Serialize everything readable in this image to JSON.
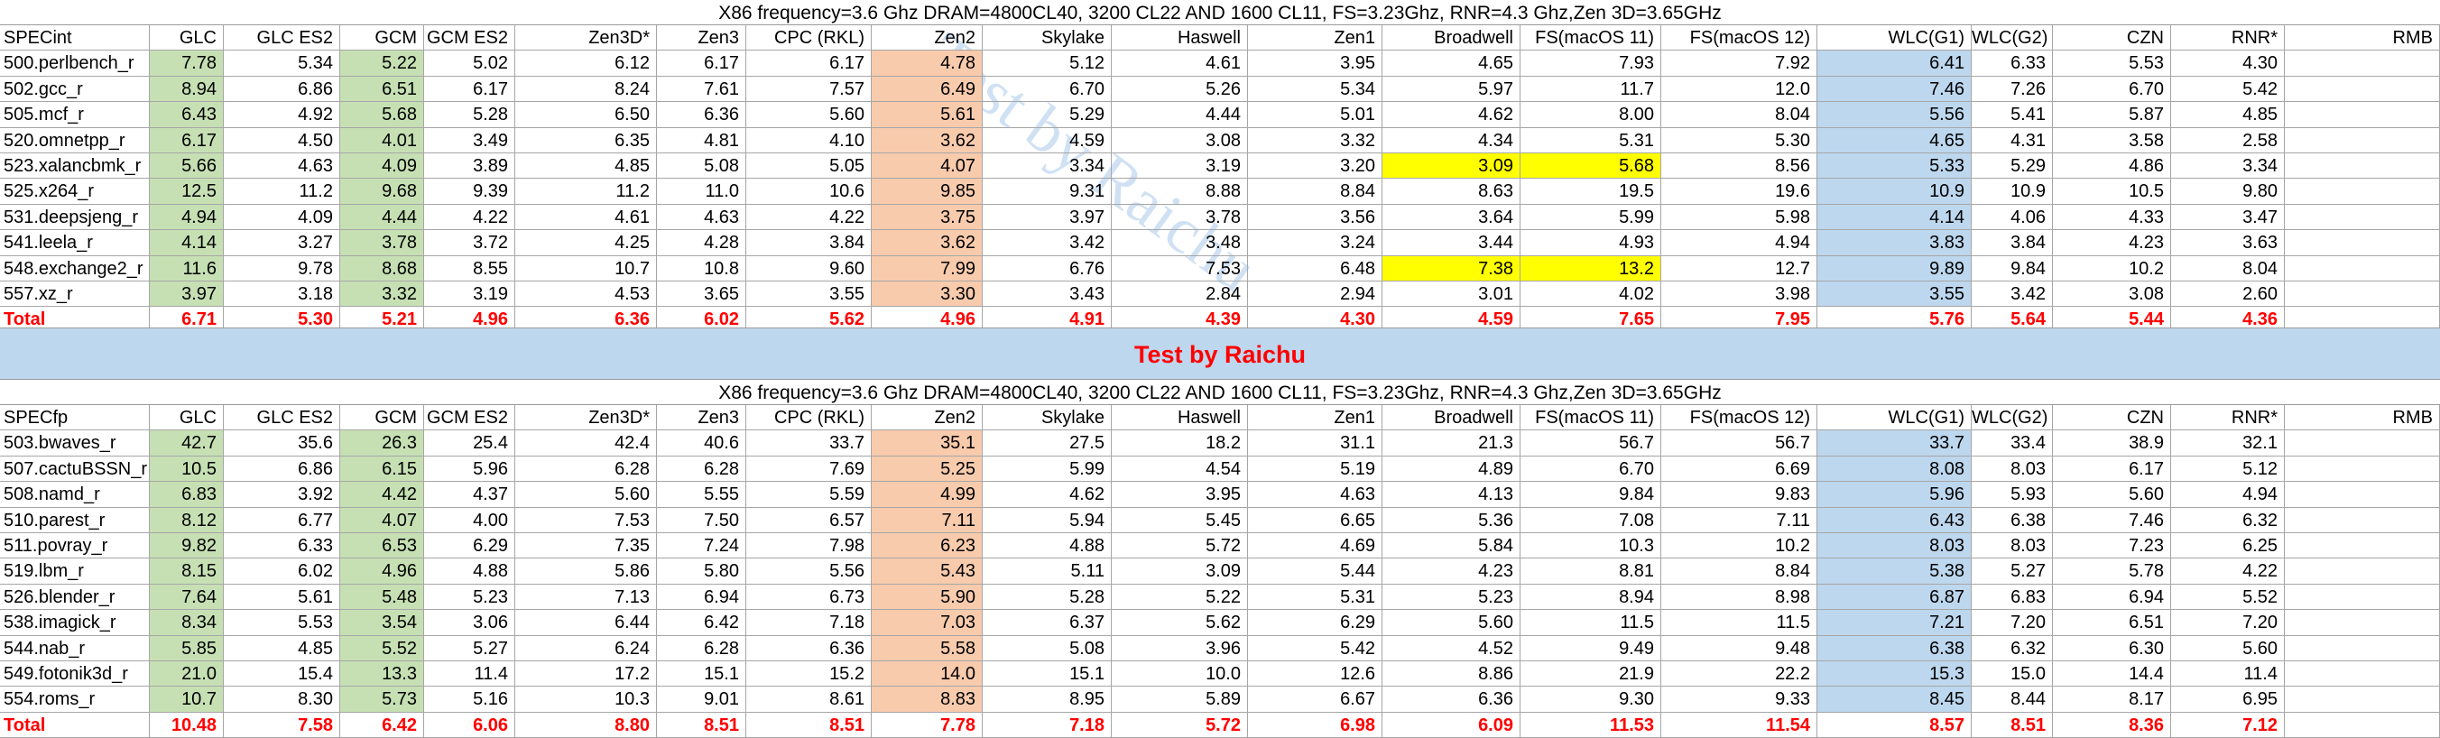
{
  "header": {
    "title": "X86 frequency=3.6 Ghz DRAM=4800CL40, 3200 CL22 AND 1600 CL11, FS=3.23Ghz, RNR=4.3 Ghz,Zen 3D=3.65GHz"
  },
  "watermark": "Test by Raichu",
  "columns": [
    "GLC",
    "GLC ES2",
    "GCM",
    "GCM ES2",
    "Zen3D*",
    "Zen3",
    "CPC (RKL)",
    "Zen2",
    "Skylake",
    "Haswell",
    "Zen1",
    "Broadwell",
    "FS(macOS 11)",
    "FS(macOS 12)",
    "WLC(G1)",
    "WLC(G2)",
    "CZN",
    "RNR*",
    "RMB"
  ],
  "colors": {
    "green": "#c6e0b4",
    "orange": "#f8cbad",
    "blue": "#bdd7ee",
    "yellow": "#ffff00",
    "total_red": "#ff0000"
  },
  "int": {
    "title": "X86 frequency=3.6 Ghz DRAM=4800CL40, 3200 CL22 AND 1600 CL11, FS=3.23Ghz, RNR=4.3 Ghz,Zen 3D=3.65GHz",
    "label": "SPECint",
    "rows": [
      {
        "name": "500.perlbench_r",
        "v": [
          "7.78",
          "5.34",
          "5.22",
          "5.02",
          "6.12",
          "6.17",
          "6.17",
          "4.78",
          "5.12",
          "4.61",
          "3.95",
          "4.65",
          "7.93",
          "7.92",
          "6.41",
          "6.33",
          "5.53",
          "4.30",
          ""
        ]
      },
      {
        "name": "502.gcc_r",
        "v": [
          "8.94",
          "6.86",
          "6.51",
          "6.17",
          "8.24",
          "7.61",
          "7.57",
          "6.49",
          "6.70",
          "5.26",
          "5.34",
          "5.97",
          "11.7",
          "12.0",
          "7.46",
          "7.26",
          "6.70",
          "5.42",
          ""
        ]
      },
      {
        "name": "505.mcf_r",
        "v": [
          "6.43",
          "4.92",
          "5.68",
          "5.28",
          "6.50",
          "6.36",
          "5.60",
          "5.61",
          "5.29",
          "4.44",
          "5.01",
          "4.62",
          "8.00",
          "8.04",
          "5.56",
          "5.41",
          "5.87",
          "4.85",
          ""
        ]
      },
      {
        "name": "520.omnetpp_r",
        "v": [
          "6.17",
          "4.50",
          "4.01",
          "3.49",
          "6.35",
          "4.81",
          "4.10",
          "3.62",
          "4.59",
          "3.08",
          "3.32",
          "4.34",
          "5.31",
          "5.30",
          "4.65",
          "4.31",
          "3.58",
          "2.58",
          ""
        ]
      },
      {
        "name": "523.xalancbmk_r",
        "v": [
          "5.66",
          "4.63",
          "4.09",
          "3.89",
          "4.85",
          "5.08",
          "5.05",
          "4.07",
          "3.34",
          "3.19",
          "3.20",
          "3.09",
          "5.68",
          "8.56",
          "5.33",
          "5.29",
          "4.86",
          "3.34",
          ""
        ]
      },
      {
        "name": "525.x264_r",
        "v": [
          "12.5",
          "11.2",
          "9.68",
          "9.39",
          "11.2",
          "11.0",
          "10.6",
          "9.85",
          "9.31",
          "8.88",
          "8.84",
          "8.63",
          "19.5",
          "19.6",
          "10.9",
          "10.9",
          "10.5",
          "9.80",
          ""
        ]
      },
      {
        "name": "531.deepsjeng_r",
        "v": [
          "4.94",
          "4.09",
          "4.44",
          "4.22",
          "4.61",
          "4.63",
          "4.22",
          "3.75",
          "3.97",
          "3.78",
          "3.56",
          "3.64",
          "5.99",
          "5.98",
          "4.14",
          "4.06",
          "4.33",
          "3.47",
          ""
        ]
      },
      {
        "name": "541.leela_r",
        "v": [
          "4.14",
          "3.27",
          "3.78",
          "3.72",
          "4.25",
          "4.28",
          "3.84",
          "3.62",
          "3.42",
          "3.48",
          "3.24",
          "3.44",
          "4.93",
          "4.94",
          "3.83",
          "3.84",
          "4.23",
          "3.63",
          ""
        ]
      },
      {
        "name": "548.exchange2_r",
        "v": [
          "11.6",
          "9.78",
          "8.68",
          "8.55",
          "10.7",
          "10.8",
          "9.60",
          "7.99",
          "6.76",
          "7.53",
          "6.48",
          "7.38",
          "13.2",
          "12.7",
          "9.89",
          "9.84",
          "10.2",
          "8.04",
          ""
        ]
      },
      {
        "name": "557.xz_r",
        "v": [
          "3.97",
          "3.18",
          "3.32",
          "3.19",
          "4.53",
          "3.65",
          "3.55",
          "3.30",
          "3.43",
          "2.84",
          "2.94",
          "3.01",
          "4.02",
          "3.98",
          "3.55",
          "3.42",
          "3.08",
          "2.60",
          ""
        ]
      }
    ],
    "total": {
      "name": "Total",
      "v": [
        "6.71",
        "5.30",
        "5.21",
        "4.96",
        "6.36",
        "6.02",
        "5.62",
        "4.96",
        "4.91",
        "4.39",
        "4.30",
        "4.59",
        "7.65",
        "7.95",
        "5.76",
        "5.64",
        "5.44",
        "4.36",
        ""
      ]
    }
  },
  "banner": "Test by Raichu",
  "fp": {
    "title": "X86 frequency=3.6 Ghz DRAM=4800CL40, 3200 CL22 AND 1600 CL11, FS=3.23Ghz, RNR=4.3 Ghz,Zen 3D=3.65GHz",
    "label": "SPECfp",
    "rows": [
      {
        "name": "503.bwaves_r",
        "v": [
          "42.7",
          "35.6",
          "26.3",
          "25.4",
          "42.4",
          "40.6",
          "33.7",
          "35.1",
          "27.5",
          "18.2",
          "31.1",
          "21.3",
          "56.7",
          "56.7",
          "33.7",
          "33.4",
          "38.9",
          "32.1",
          ""
        ]
      },
      {
        "name": "507.cactuBSSN_r",
        "v": [
          "10.5",
          "6.86",
          "6.15",
          "5.96",
          "6.28",
          "6.28",
          "7.69",
          "5.25",
          "5.99",
          "4.54",
          "5.19",
          "4.89",
          "6.70",
          "6.69",
          "8.08",
          "8.03",
          "6.17",
          "5.12",
          ""
        ]
      },
      {
        "name": "508.namd_r",
        "v": [
          "6.83",
          "3.92",
          "4.42",
          "4.37",
          "5.60",
          "5.55",
          "5.59",
          "4.99",
          "4.62",
          "3.95",
          "4.63",
          "4.13",
          "9.84",
          "9.83",
          "5.96",
          "5.93",
          "5.60",
          "4.94",
          ""
        ]
      },
      {
        "name": "510.parest_r",
        "v": [
          "8.12",
          "6.77",
          "4.07",
          "4.00",
          "7.53",
          "7.50",
          "6.57",
          "7.11",
          "5.94",
          "5.45",
          "6.65",
          "5.36",
          "7.08",
          "7.11",
          "6.43",
          "6.38",
          "7.46",
          "6.32",
          ""
        ]
      },
      {
        "name": "511.povray_r",
        "v": [
          "9.82",
          "6.33",
          "6.53",
          "6.29",
          "7.35",
          "7.24",
          "7.98",
          "6.23",
          "4.88",
          "5.72",
          "4.69",
          "5.84",
          "10.3",
          "10.2",
          "8.03",
          "8.03",
          "7.23",
          "6.25",
          ""
        ]
      },
      {
        "name": "519.lbm_r",
        "v": [
          "8.15",
          "6.02",
          "4.96",
          "4.88",
          "5.86",
          "5.80",
          "5.56",
          "5.43",
          "5.11",
          "3.09",
          "5.44",
          "4.23",
          "8.81",
          "8.84",
          "5.38",
          "5.27",
          "5.78",
          "4.22",
          ""
        ]
      },
      {
        "name": "526.blender_r",
        "v": [
          "7.64",
          "5.61",
          "5.48",
          "5.23",
          "7.13",
          "6.94",
          "6.73",
          "5.90",
          "5.28",
          "5.22",
          "5.31",
          "5.23",
          "8.94",
          "8.98",
          "6.87",
          "6.83",
          "6.94",
          "5.52",
          ""
        ]
      },
      {
        "name": "538.imagick_r",
        "v": [
          "8.34",
          "5.53",
          "3.54",
          "3.06",
          "6.44",
          "6.42",
          "7.18",
          "7.03",
          "6.37",
          "5.62",
          "6.29",
          "5.60",
          "11.5",
          "11.5",
          "7.21",
          "7.20",
          "6.51",
          "7.20",
          ""
        ]
      },
      {
        "name": "544.nab_r",
        "v": [
          "5.85",
          "4.85",
          "5.52",
          "5.27",
          "6.24",
          "6.28",
          "6.36",
          "5.58",
          "5.08",
          "3.96",
          "5.42",
          "4.52",
          "9.49",
          "9.48",
          "6.38",
          "6.32",
          "6.30",
          "5.60",
          ""
        ]
      },
      {
        "name": "549.fotonik3d_r",
        "v": [
          "21.0",
          "15.4",
          "13.3",
          "11.4",
          "17.2",
          "15.1",
          "15.2",
          "14.0",
          "15.1",
          "10.0",
          "12.6",
          "8.86",
          "21.9",
          "22.2",
          "15.3",
          "15.0",
          "14.4",
          "11.4",
          ""
        ]
      },
      {
        "name": "554.roms_r",
        "v": [
          "10.7",
          "8.30",
          "5.73",
          "5.16",
          "10.3",
          "9.01",
          "8.61",
          "8.83",
          "8.95",
          "5.89",
          "6.67",
          "6.36",
          "9.30",
          "9.33",
          "8.45",
          "8.44",
          "8.17",
          "6.95",
          ""
        ]
      }
    ],
    "total": {
      "name": "Total",
      "v": [
        "10.48",
        "7.58",
        "6.42",
        "6.06",
        "8.80",
        "8.51",
        "8.51",
        "7.78",
        "7.18",
        "5.72",
        "6.98",
        "6.09",
        "11.53",
        "11.54",
        "8.57",
        "8.51",
        "8.36",
        "7.12",
        ""
      ]
    }
  }
}
